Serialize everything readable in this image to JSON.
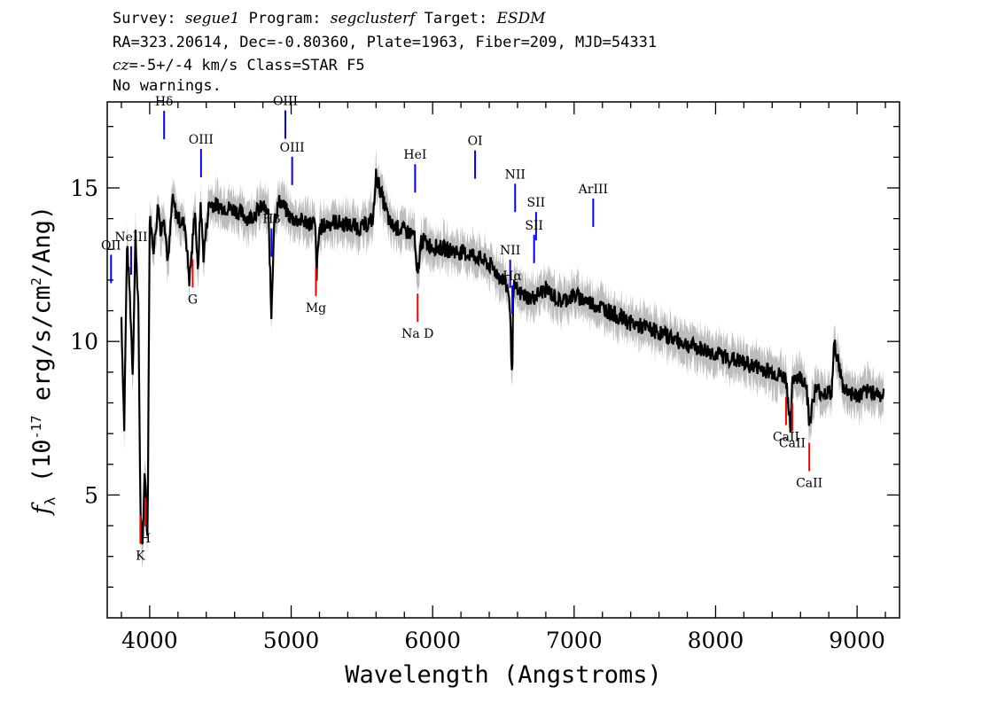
{
  "header": {
    "line1": {
      "survey_label": "Survey: ",
      "survey": "segue1",
      "program_label": " Program: ",
      "program": "segclusterf",
      "target_label": " Target: ",
      "target": "ESDM"
    },
    "line2": "RA=323.20614, Dec=-0.80360, Plate=1963, Fiber=209, MJD=54331",
    "line3": {
      "cz_label": "cz",
      "cz_value": "=-5+/-4",
      "cz_unit": " km/s Class=STAR F5"
    },
    "line4": "No warnings."
  },
  "chart_data": {
    "type": "line",
    "xlabel": "Wavelength (Angstroms)",
    "ylabel": "f_λ (10^-17 erg/s/cm²/Ang)",
    "xlim": [
      3700,
      9300
    ],
    "ylim": [
      1,
      17.8
    ],
    "x_ticks": [
      4000,
      5000,
      6000,
      7000,
      8000,
      9000
    ],
    "y_ticks": [
      5,
      10,
      15
    ],
    "grid": false,
    "colors": {
      "flux": "#000000",
      "error_band": "#bdbdbd",
      "emission_line": "#0000ff",
      "absorption_line": "#ff0000"
    },
    "series": [
      {
        "x": [
          3800,
          3820,
          3840,
          3860,
          3880,
          3900,
          3920,
          3935,
          3950,
          3965,
          3985,
          4000,
          4030,
          4060,
          4080,
          4100,
          4130,
          4160,
          4200,
          4250,
          4280,
          4300,
          4320,
          4340,
          4360,
          4380,
          4420,
          4500,
          4600,
          4700,
          4800,
          4840,
          4860,
          4880,
          4920,
          5000,
          5100,
          5170,
          5180,
          5200,
          5300,
          5400,
          5500,
          5580,
          5600,
          5700,
          5800,
          5870,
          5890,
          5895,
          5920,
          6000,
          6100,
          6200,
          6300,
          6400,
          6500,
          6540,
          6560,
          6563,
          6570,
          6600,
          6700,
          6800,
          6900,
          7000,
          7200,
          7400,
          7600,
          7800,
          8000,
          8200,
          8400,
          8498,
          8530,
          8542,
          8560,
          8640,
          8662,
          8700,
          8820,
          8840,
          8900,
          9000,
          9100,
          9190
        ],
        "y": [
          10.8,
          7.2,
          13.2,
          11.5,
          9.0,
          13.5,
          11.0,
          4.5,
          3.0,
          6.0,
          3.5,
          14.0,
          13.0,
          14.5,
          13.5,
          14.2,
          12.5,
          14.6,
          14.0,
          13.8,
          12.0,
          13.0,
          14.4,
          12.2,
          14.5,
          12.8,
          14.5,
          14.4,
          14.3,
          14.0,
          14.4,
          14.1,
          10.8,
          14.0,
          14.6,
          14.0,
          13.9,
          13.8,
          12.2,
          13.7,
          13.9,
          13.8,
          13.7,
          14.0,
          15.4,
          13.8,
          13.6,
          13.5,
          12.0,
          12.2,
          13.3,
          13.1,
          13.0,
          12.9,
          12.8,
          12.5,
          12.0,
          11.6,
          9.2,
          9.1,
          11.8,
          11.6,
          11.4,
          11.7,
          11.3,
          11.5,
          11.1,
          10.6,
          10.3,
          9.9,
          9.6,
          9.3,
          9.0,
          8.8,
          7.2,
          8.6,
          8.9,
          8.7,
          7.3,
          8.4,
          8.3,
          10.0,
          8.5,
          8.2,
          8.4,
          8.2
        ]
      }
    ],
    "emission_lines": [
      {
        "label": "OII",
        "x": 3727
      },
      {
        "label": "NeIII",
        "x": 3869
      },
      {
        "label": "Hδ",
        "x": 4102
      },
      {
        "label": "OIII",
        "x": 4363
      },
      {
        "label": "Hβ",
        "x": 4861
      },
      {
        "label": "OIII",
        "x": 4959
      },
      {
        "label": "OIII",
        "x": 5007
      },
      {
        "label": "HeI",
        "x": 5876
      },
      {
        "label": "OI",
        "x": 6300
      },
      {
        "label": "NII",
        "x": 6548
      },
      {
        "label": "Hα",
        "x": 6563
      },
      {
        "label": "NII",
        "x": 6583
      },
      {
        "label": "SII",
        "x": 6717
      },
      {
        "label": "SII",
        "x": 6731
      },
      {
        "label": "ArIII",
        "x": 7135
      }
    ],
    "absorption_lines": [
      {
        "label": "K",
        "x": 3934
      },
      {
        "label": "H",
        "x": 3969
      },
      {
        "label": "G",
        "x": 4304
      },
      {
        "label": "Mg",
        "x": 5175
      },
      {
        "label": "Na D",
        "x": 5894
      },
      {
        "label": "CaII",
        "x": 8498
      },
      {
        "label": "CaII",
        "x": 8542
      },
      {
        "label": "CaII",
        "x": 8662
      }
    ]
  }
}
